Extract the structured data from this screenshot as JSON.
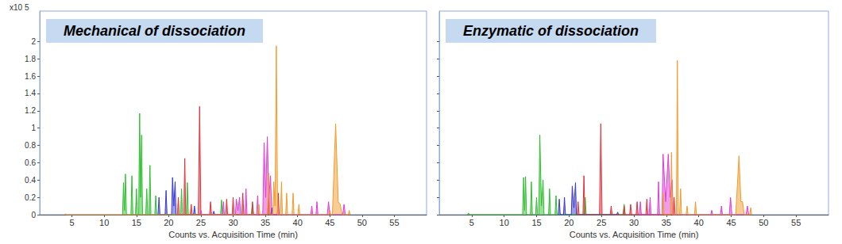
{
  "chart_data": [
    {
      "type": "area",
      "title": "Mechanical of dissociation",
      "x_label": "Counts vs. Acquisition Time (min)",
      "y_label": "x10 5",
      "xlim": [
        0,
        60
      ],
      "xticks": [
        5,
        10,
        15,
        20,
        25,
        30,
        35,
        40,
        45,
        50,
        55
      ],
      "ylim": [
        0,
        2.35
      ],
      "yticks": [
        0,
        0.2,
        0.4,
        0.6,
        0.8,
        1,
        1.2,
        1.4,
        1.6,
        1.8,
        2
      ],
      "grid": false,
      "series": [
        {
          "color": "#2fbf2f",
          "x": [
            12.85,
            13.0,
            13.15,
            13.3,
            13.45,
            14.15,
            14.3,
            14.45,
            14.85,
            15.0,
            15.15,
            15.35,
            15.5,
            15.65,
            15.8,
            15.95,
            16.45,
            16.6,
            16.75,
            16.95,
            17.1,
            17.25,
            17.85,
            18.0,
            18.15,
            21.85,
            22.0,
            22.15,
            22.75,
            22.9,
            23.05,
            28.05,
            28.2,
            28.35,
            32.85,
            33.0,
            33.15
          ],
          "values": [
            0,
            0.37,
            0.05,
            0.47,
            0,
            0,
            0.45,
            0,
            0,
            0.3,
            0,
            0,
            1.17,
            0.2,
            0.92,
            0,
            0,
            0.3,
            0,
            0,
            0.57,
            0,
            0,
            0.22,
            0,
            0,
            0.3,
            0,
            0,
            0.37,
            0,
            0,
            0.17,
            0,
            0,
            0.12,
            0
          ]
        },
        {
          "color": "#3a3ad0",
          "x": [
            18.35,
            18.5,
            18.65,
            19.45,
            19.6,
            19.75,
            20.45,
            20.6,
            20.8,
            21.0,
            21.15,
            23.85,
            24.0,
            24.15,
            26.85,
            27.0,
            27.15,
            35.85,
            36.0,
            36.15
          ],
          "values": [
            0,
            0.2,
            0,
            0,
            0.28,
            0,
            0,
            0.43,
            0.1,
            0.38,
            0,
            0,
            0.1,
            0,
            0,
            0.04,
            0,
            0,
            0.08,
            0
          ]
        },
        {
          "color": "#e0303a",
          "x": [
            21.35,
            21.5,
            21.65,
            22.35,
            22.5,
            22.65,
            23.35,
            23.5,
            23.65,
            24.6,
            24.8,
            25.0,
            26.35,
            26.5,
            26.65,
            28.85,
            29.0,
            29.15,
            29.85,
            30.0,
            30.15,
            31.35,
            31.5,
            31.65,
            32.85,
            33.0,
            33.15,
            35.35,
            35.5,
            35.65,
            36.85,
            37.0,
            37.15
          ],
          "values": [
            0,
            0.2,
            0,
            0,
            0.65,
            0,
            0,
            0.12,
            0,
            0,
            1.25,
            0,
            0,
            0.15,
            0,
            0,
            0.18,
            0,
            0,
            0.2,
            0,
            0,
            0.25,
            0,
            0,
            0.15,
            0,
            0,
            0.2,
            0,
            0,
            0.25,
            0
          ]
        },
        {
          "color": "#e03cd8",
          "x": [
            24.85,
            25.0,
            25.15,
            28.35,
            28.5,
            28.65,
            30.35,
            30.5,
            30.75,
            31.0,
            31.15,
            31.85,
            32.0,
            32.15,
            33.65,
            33.8,
            33.95,
            34.6,
            34.8,
            35.05,
            35.3,
            35.55,
            35.8,
            36.0,
            42.05,
            42.2,
            42.35,
            42.85,
            43.0,
            43.15,
            44.6,
            44.8,
            45.0,
            47.0,
            47.2,
            47.4
          ],
          "values": [
            0,
            0.05,
            0,
            0,
            0.15,
            0,
            0,
            0.18,
            0.05,
            0.2,
            0,
            0,
            0.3,
            0,
            0,
            0.22,
            0,
            0,
            0.83,
            0.2,
            0.9,
            0.2,
            0.45,
            0,
            0,
            0.1,
            0,
            0,
            0.15,
            0,
            0,
            0.15,
            0,
            0,
            0.12,
            0
          ]
        },
        {
          "color": "#f29b2c",
          "x": [
            3.85,
            4.0,
            4.15,
            33.85,
            34.0,
            34.15,
            35.35,
            35.5,
            35.65,
            36.15,
            36.3,
            36.5,
            36.7,
            36.9,
            37.35,
            37.5,
            37.65,
            38.15,
            38.3,
            38.45,
            39.15,
            39.3,
            39.45,
            40.05,
            40.2,
            40.35,
            44.85,
            45.0,
            45.15,
            45.4,
            45.9,
            46.3,
            46.6,
            46.9,
            47.85,
            48.0,
            48.15
          ],
          "values": [
            0,
            0.01,
            0,
            0,
            0.12,
            0,
            0,
            0.48,
            0,
            0,
            0.38,
            0.1,
            1.95,
            0,
            0,
            0.38,
            0,
            0,
            0.25,
            0,
            0,
            0.25,
            0,
            0,
            0.12,
            0,
            0,
            0.05,
            0,
            0,
            1.05,
            0.15,
            0.12,
            0,
            0,
            0.05,
            0
          ]
        }
      ]
    },
    {
      "type": "area",
      "title": "Enzymatic of dissociation",
      "x_label": "Counts vs. Acquisition Time (min)",
      "xlim": [
        0,
        60
      ],
      "xticks": [
        5,
        10,
        15,
        20,
        25,
        30,
        35,
        40,
        45,
        50,
        55
      ],
      "ylim": [
        0,
        2.35
      ],
      "yticks": [
        0,
        0.2,
        0.4,
        0.6,
        0.8,
        1,
        1.2,
        1.4,
        1.6,
        1.8,
        2
      ],
      "grid": false,
      "tick_labels": "x",
      "series": [
        {
          "color": "#2fbf2f",
          "x": [
            4.35,
            4.5,
            4.65,
            12.85,
            13.0,
            13.15,
            13.3,
            13.45,
            14.05,
            14.2,
            14.35,
            14.85,
            15.0,
            15.15,
            15.35,
            15.5,
            15.75,
            16.0,
            16.15,
            16.85,
            17.0,
            17.15,
            17.85,
            18.0,
            18.15,
            22.35,
            22.5,
            22.65,
            28.35,
            28.5,
            28.65
          ],
          "values": [
            0,
            0.02,
            0,
            0,
            0.43,
            0.05,
            0.44,
            0,
            0,
            0.38,
            0,
            0,
            0.2,
            0,
            0,
            0.92,
            0.1,
            0.4,
            0,
            0,
            0.3,
            0,
            0,
            0.22,
            0,
            0,
            0.2,
            0,
            0,
            0.12,
            0
          ]
        },
        {
          "color": "#3a3ad0",
          "x": [
            18.35,
            18.5,
            18.65,
            19.15,
            19.3,
            19.45,
            20.35,
            20.5,
            20.75,
            21.0,
            21.15,
            27.35,
            27.5,
            27.65
          ],
          "values": [
            0,
            0.18,
            0,
            0,
            0.2,
            0,
            0,
            0.33,
            0.08,
            0.37,
            0,
            0,
            0.03,
            0
          ]
        },
        {
          "color": "#e0303a",
          "x": [
            21.25,
            21.4,
            21.55,
            22.15,
            22.3,
            22.45,
            24.7,
            24.9,
            25.1,
            26.35,
            26.5,
            26.65,
            28.35,
            28.5,
            28.65,
            29.35,
            29.5,
            29.65,
            30.35,
            30.5,
            30.65,
            31.85,
            32.0,
            32.15,
            36.05,
            36.2,
            36.35
          ],
          "values": [
            0,
            0.15,
            0,
            0,
            0.45,
            0,
            0,
            1.05,
            0,
            0,
            0.1,
            0,
            0,
            0.1,
            0,
            0,
            0.12,
            0,
            0,
            0.15,
            0,
            0,
            0.18,
            0,
            0,
            0.2,
            0
          ]
        },
        {
          "color": "#e03cd8",
          "x": [
            30.85,
            31.0,
            31.15,
            32.35,
            32.5,
            32.65,
            33.65,
            33.8,
            33.95,
            34.35,
            34.5,
            34.9,
            35.3,
            35.6,
            35.9,
            36.05,
            41.85,
            42.0,
            42.15,
            43.35,
            43.5,
            43.65,
            44.7,
            44.9,
            45.1,
            47.3,
            47.5,
            47.7
          ],
          "values": [
            0,
            0.15,
            0,
            0,
            0.2,
            0,
            0,
            0.38,
            0,
            0,
            0.7,
            0.15,
            0.7,
            0.2,
            0.4,
            0,
            0,
            0.05,
            0,
            0,
            0.1,
            0,
            0,
            0.2,
            0,
            0,
            0.1,
            0
          ]
        },
        {
          "color": "#f29b2c",
          "x": [
            34.35,
            34.5,
            34.65,
            35.65,
            35.8,
            35.95,
            36.55,
            36.7,
            36.85,
            37.05,
            37.2,
            37.35,
            38.05,
            38.2,
            38.35,
            39.35,
            39.5,
            39.65,
            45.7,
            46.2,
            46.5,
            46.75,
            47.0,
            47.85,
            48.0,
            48.15
          ],
          "values": [
            0,
            0.25,
            0,
            0,
            0.72,
            0,
            0,
            1.78,
            0,
            0,
            0.3,
            0,
            0,
            0.1,
            0,
            0,
            0.15,
            0,
            0,
            0.68,
            0.15,
            0.15,
            0,
            0,
            0.08,
            0
          ]
        }
      ]
    }
  ]
}
